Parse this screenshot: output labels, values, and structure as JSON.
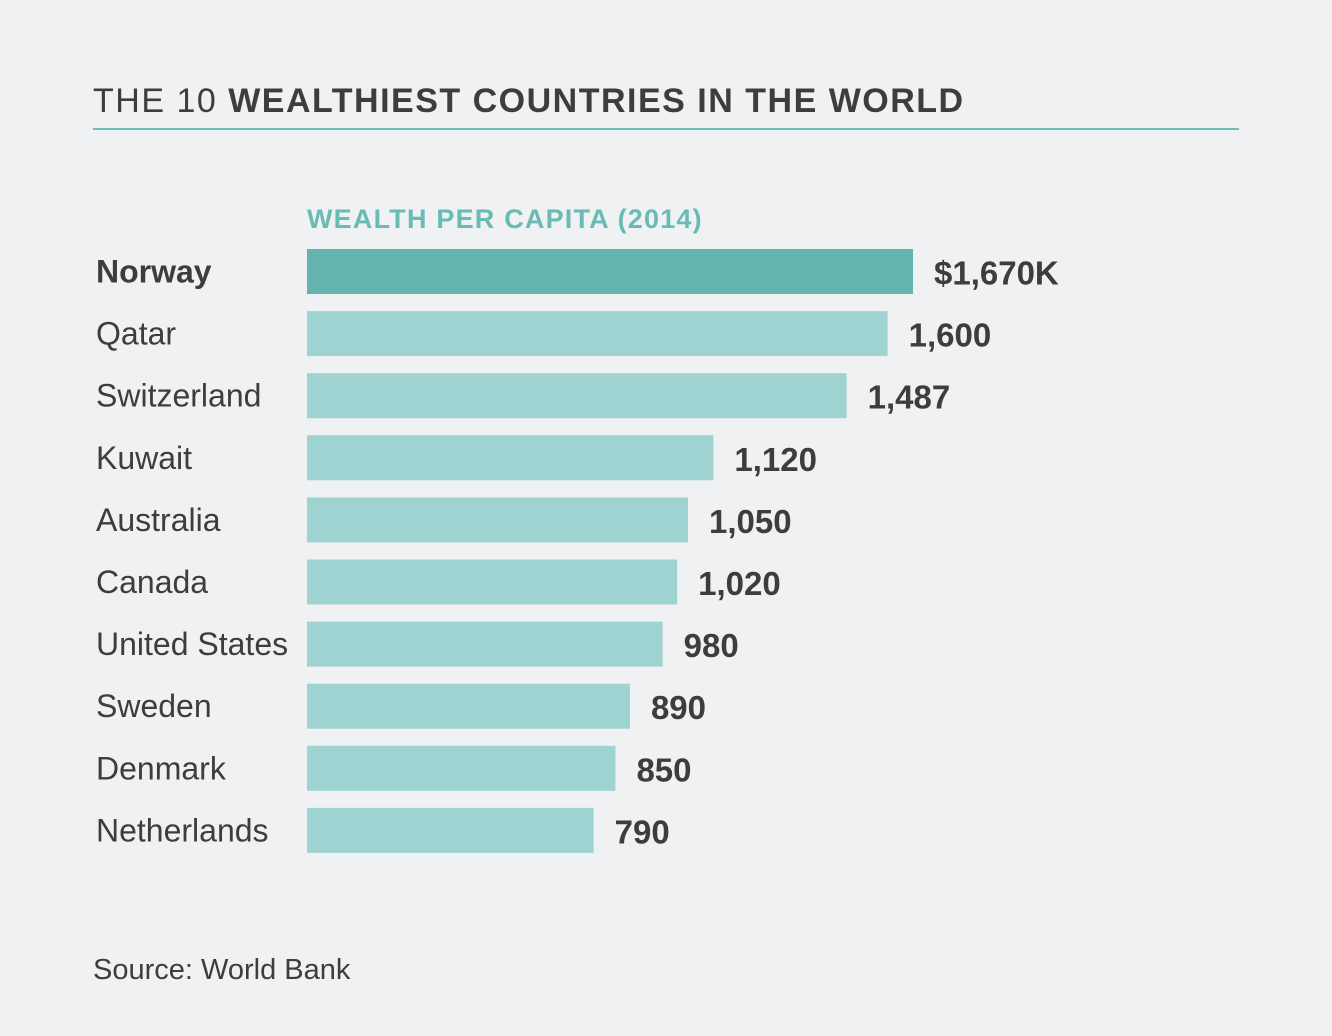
{
  "title": {
    "prefix": "THE 10",
    "main": "WEALTHIEST COUNTRIES IN THE WORLD"
  },
  "source": "Source: World Bank",
  "colors": {
    "highlight_bar": "#64b5b0",
    "bar": "#9fd3d1",
    "accent": "#68bcb5",
    "text": "#3d3d3d",
    "background": "#f0f1f3"
  },
  "chart_data": {
    "type": "bar",
    "orientation": "horizontal",
    "title": "THE 10 WEALTHIEST COUNTRIES IN THE WORLD",
    "subtitle": "WEALTH PER CAPITA (2014)",
    "categories": [
      "Norway",
      "Qatar",
      "Switzerland",
      "Kuwait",
      "Australia",
      "Canada",
      "United States",
      "Sweden",
      "Denmark",
      "Netherlands"
    ],
    "values": [
      1670,
      1600,
      1487,
      1120,
      1050,
      1020,
      980,
      890,
      850,
      790
    ],
    "value_labels": [
      "$1,670K",
      "1,600",
      "1,487",
      "1,120",
      "1,050",
      "1,020",
      "980",
      "890",
      "850",
      "790"
    ],
    "highlight_index": 0,
    "xlim": [
      0,
      1670
    ],
    "grid": false
  }
}
